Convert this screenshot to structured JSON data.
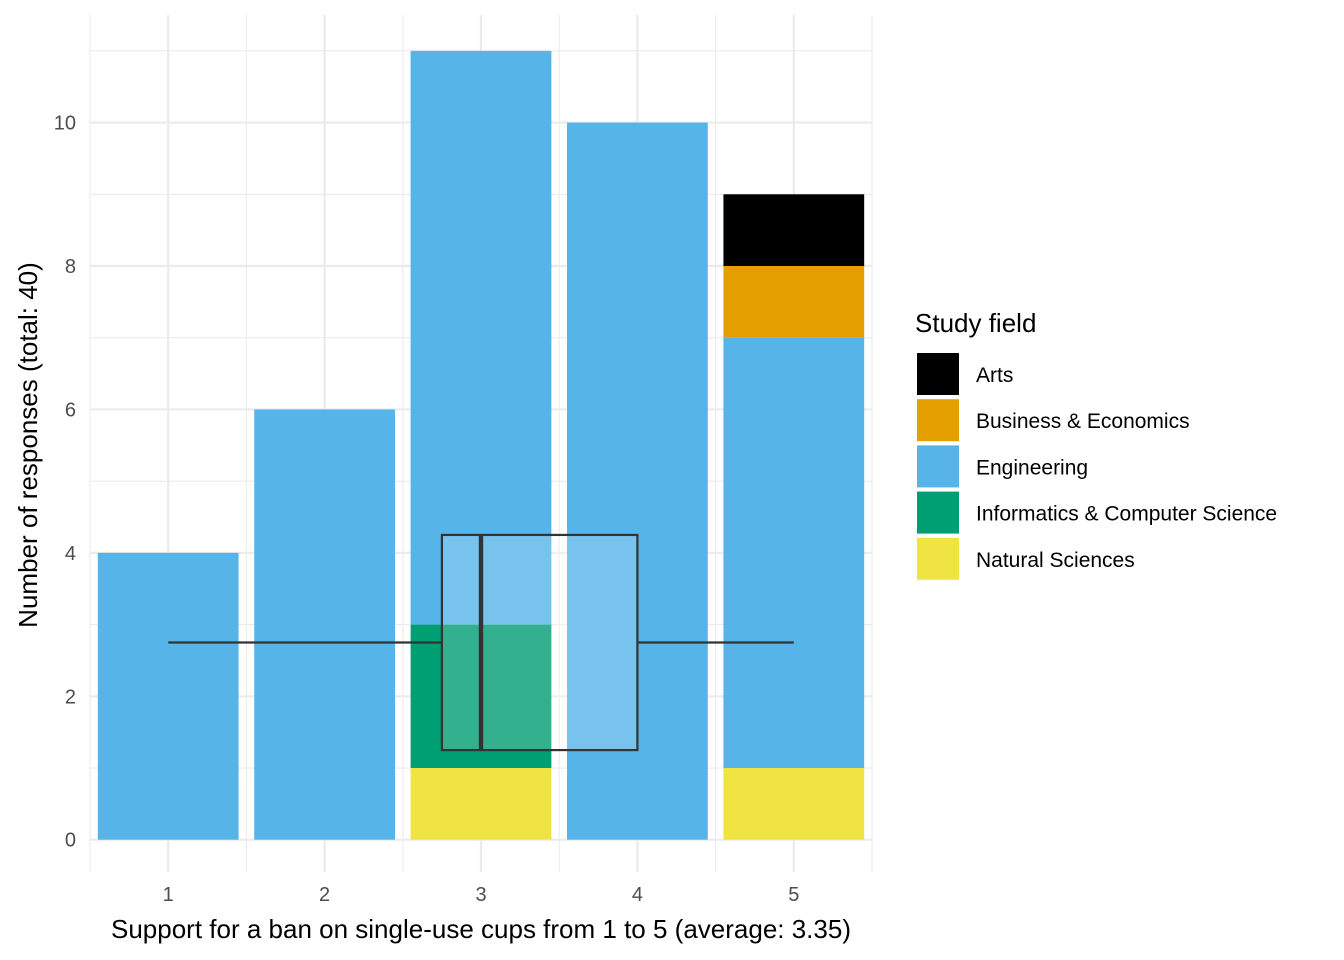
{
  "chart_data": {
    "type": "bar",
    "stacked": true,
    "xlabel": "Support for a ban on single-use cups from 1 to 5 (average: 3.35)",
    "ylabel": "Number of responses (total: 40)",
    "categories": [
      "1",
      "2",
      "3",
      "4",
      "5"
    ],
    "ylim": [
      -0.45,
      11.5
    ],
    "yticks": [
      0,
      2,
      4,
      6,
      8,
      10
    ],
    "grid": true,
    "legend": {
      "title": "Study field",
      "position": "right"
    },
    "series": [
      {
        "name": "Natural Sciences",
        "color": "#F0E442",
        "values": [
          0,
          0,
          1,
          0,
          1
        ]
      },
      {
        "name": "Informatics & Computer Science",
        "color": "#009E73",
        "values": [
          0,
          0,
          2,
          0,
          0
        ]
      },
      {
        "name": "Engineering",
        "color": "#56B4E9",
        "values": [
          4,
          6,
          8,
          10,
          6
        ]
      },
      {
        "name": "Business & Economics",
        "color": "#E69F00",
        "values": [
          0,
          0,
          0,
          0,
          1
        ]
      },
      {
        "name": "Arts",
        "color": "#000000",
        "values": [
          0,
          0,
          0,
          0,
          1
        ]
      }
    ],
    "legend_order": [
      "Arts",
      "Business & Economics",
      "Engineering",
      "Informatics & Computer Science",
      "Natural Sciences"
    ],
    "boxplot": {
      "min": 1,
      "q1": 2.75,
      "median": 3,
      "q3": 4,
      "max": 5,
      "y_center": 2.75,
      "y_bottom": 1.25,
      "y_top": 4.25,
      "color": "#333333"
    }
  }
}
